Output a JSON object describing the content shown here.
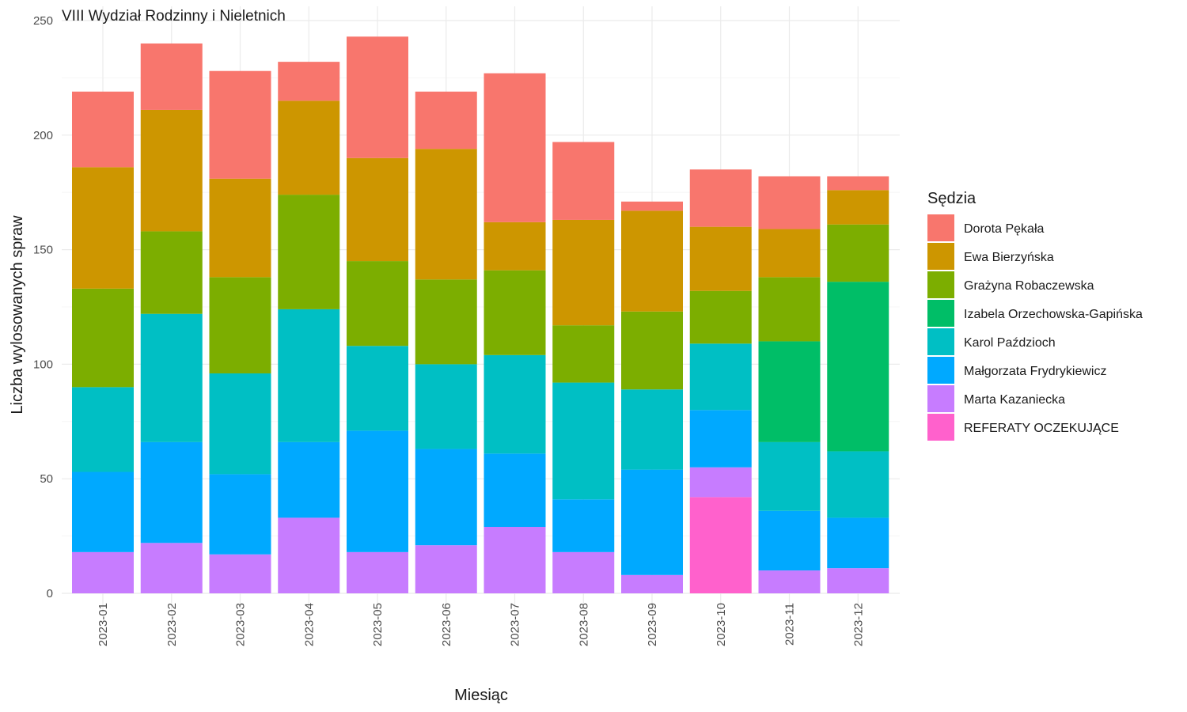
{
  "chart_data": {
    "type": "bar",
    "stacked": true,
    "title": "VIII Wydział Rodzinny i Nieletnich",
    "xlabel": "Miesiąc",
    "ylabel": "Liczba wylosowanych spraw",
    "ylim": [
      0,
      250
    ],
    "yticks": [
      "0",
      "50",
      "100",
      "150",
      "200",
      "250"
    ],
    "grid": true,
    "legend_title": "Sędzia",
    "legend_position": "right",
    "categories": [
      "2023-01",
      "2023-02",
      "2023-03",
      "2023-04",
      "2023-05",
      "2023-06",
      "2023-07",
      "2023-08",
      "2023-09",
      "2023-10",
      "2023-11",
      "2023-12"
    ],
    "series": [
      {
        "name": "Dorota Pękała",
        "color": "#F8766D",
        "values": [
          33,
          29,
          47,
          17,
          53,
          25,
          65,
          34,
          4,
          25,
          23,
          6
        ]
      },
      {
        "name": "Ewa Bierzyńska",
        "color": "#CD9600",
        "values": [
          53,
          53,
          43,
          41,
          45,
          57,
          21,
          46,
          44,
          28,
          21,
          15
        ]
      },
      {
        "name": "Grażyna Robaczewska",
        "color": "#7CAE00",
        "values": [
          43,
          36,
          42,
          50,
          37,
          37,
          37,
          25,
          34,
          23,
          28,
          25
        ]
      },
      {
        "name": "Izabela Orzechowska-Gapińska",
        "color": "#00BE67",
        "values": [
          0,
          0,
          0,
          0,
          0,
          0,
          0,
          0,
          0,
          0,
          44,
          74
        ]
      },
      {
        "name": "Karol Paździoch",
        "color": "#00BFC4",
        "values": [
          37,
          56,
          44,
          58,
          37,
          37,
          43,
          51,
          35,
          29,
          30,
          29
        ]
      },
      {
        "name": "Małgorzata Frydrykiewicz",
        "color": "#00A9FF",
        "values": [
          35,
          44,
          35,
          33,
          53,
          42,
          32,
          23,
          46,
          25,
          26,
          22
        ]
      },
      {
        "name": "Marta Kazaniecka",
        "color": "#C77CFF",
        "values": [
          18,
          22,
          17,
          33,
          18,
          21,
          29,
          18,
          8,
          13,
          10,
          11
        ]
      },
      {
        "name": "REFERATY OCZEKUJĄCE",
        "color": "#FF61CC",
        "values": [
          0,
          0,
          0,
          0,
          0,
          0,
          0,
          0,
          0,
          42,
          0,
          0
        ]
      }
    ]
  }
}
